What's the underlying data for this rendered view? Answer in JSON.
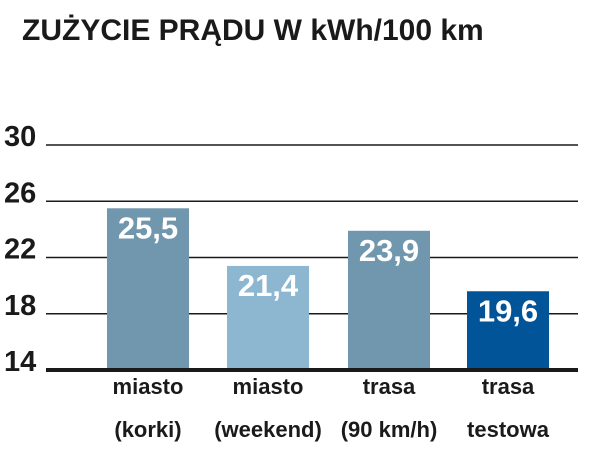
{
  "chart_data": {
    "type": "bar",
    "title": "ZUŻYCIE PRĄDU W kWh/100 km",
    "categories": [
      [
        "miasto",
        "(korki)"
      ],
      [
        "miasto",
        "(weekend)"
      ],
      [
        "trasa",
        "(90 km/h)"
      ],
      [
        "trasa",
        "testowa"
      ]
    ],
    "values": [
      25.5,
      21.4,
      23.9,
      19.6
    ],
    "value_labels": [
      "25,5",
      "21,4",
      "23,9",
      "19,6"
    ],
    "bar_colors": [
      "#7097ad",
      "#8db7d1",
      "#7097ad",
      "#005497"
    ],
    "ylim": [
      14,
      30
    ],
    "yticks": [
      30,
      26,
      22,
      18,
      14
    ],
    "ytick_labels": [
      "30",
      "26",
      "22",
      "18",
      "14"
    ],
    "grid": true,
    "legend": "none"
  }
}
